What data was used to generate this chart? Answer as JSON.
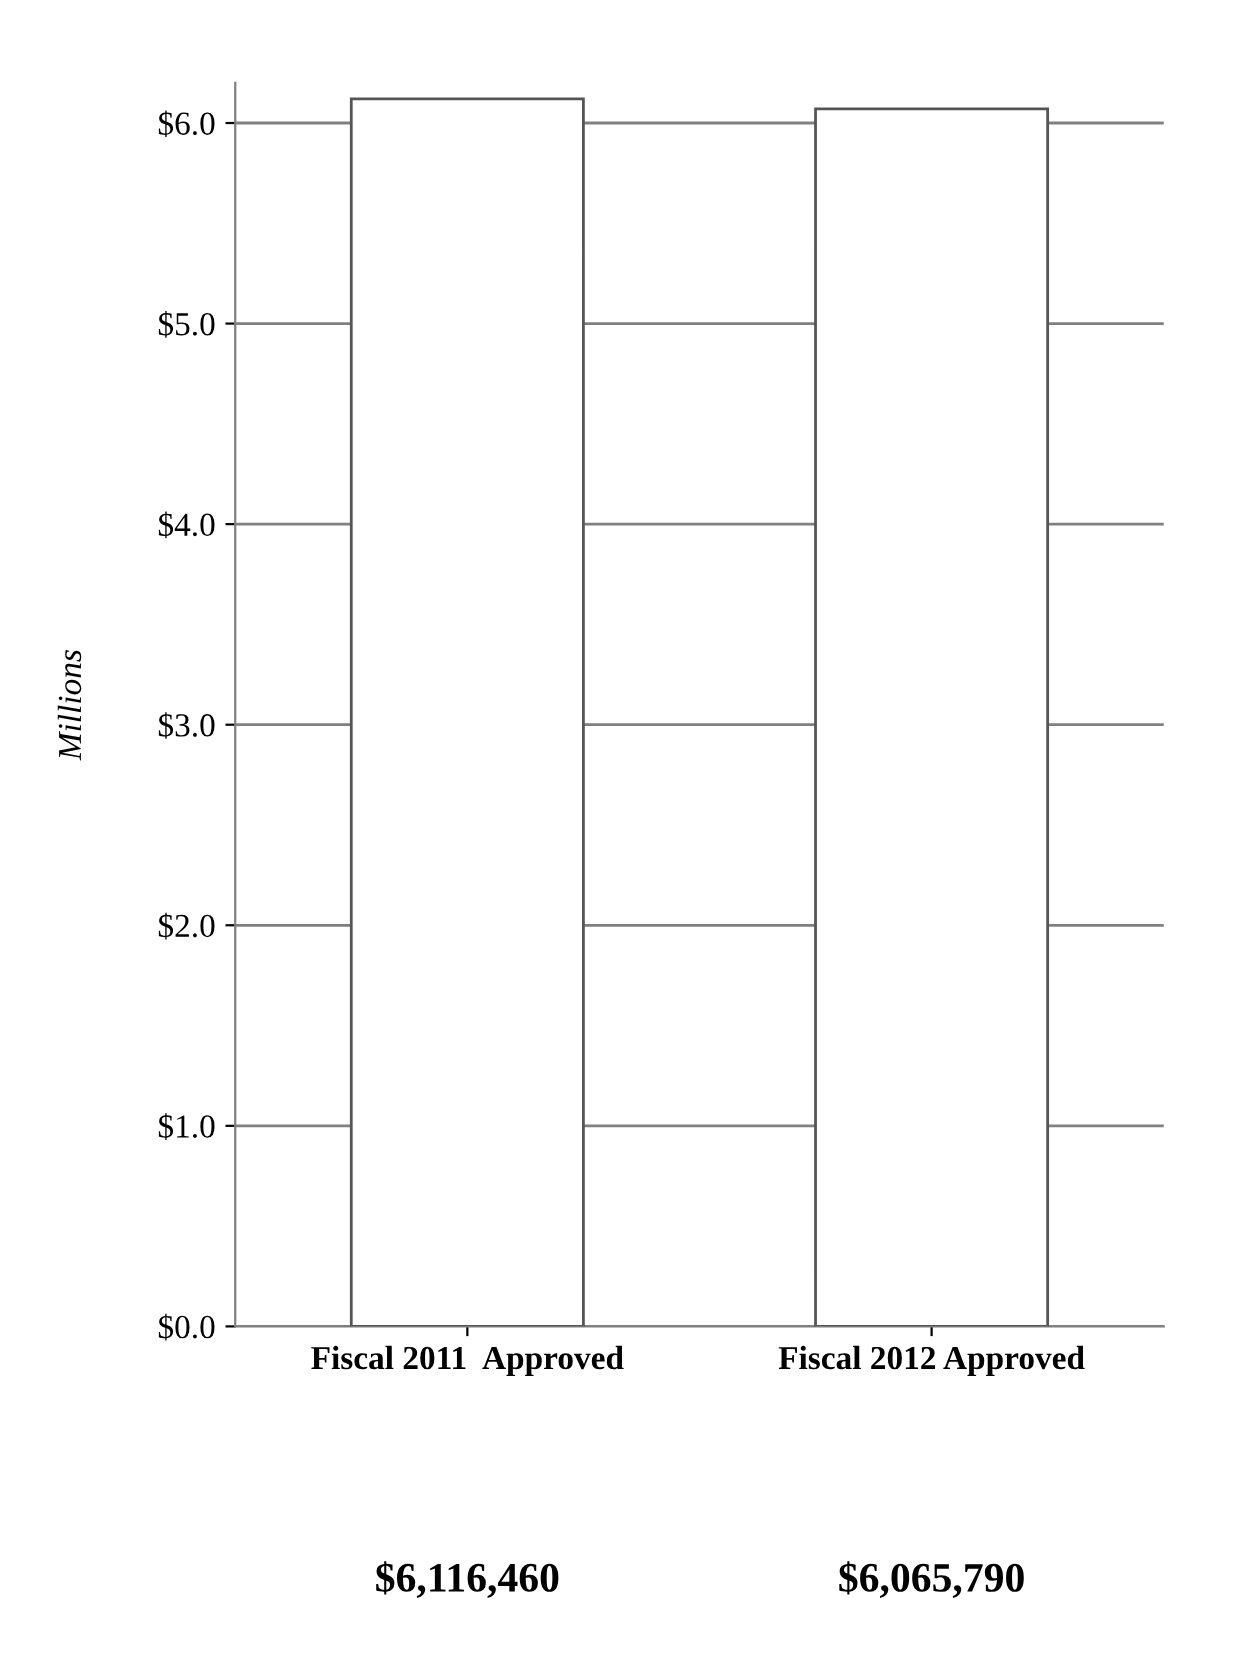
{
  "chart_data": {
    "type": "bar",
    "ylabel": "Millions",
    "categories": [
      "Fiscal 2011  Approved",
      "Fiscal 2012 Approved"
    ],
    "values": [
      6.12,
      6.07
    ],
    "color": "#ffffff",
    "annotations": [
      "$6,116,460",
      "$6,065,790"
    ],
    "ylim": [
      0,
      6.2
    ],
    "yticks": [
      {
        "value": 0,
        "label": "$0.0"
      },
      {
        "value": 1,
        "label": "$1.0"
      },
      {
        "value": 2,
        "label": "$2.0"
      },
      {
        "value": 3,
        "label": "$3.0"
      },
      {
        "value": 4,
        "label": "$4.0"
      },
      {
        "value": 5,
        "label": "$5.0"
      },
      {
        "value": 6,
        "label": "$6.0"
      }
    ],
    "grid": "y",
    "legend": false
  }
}
